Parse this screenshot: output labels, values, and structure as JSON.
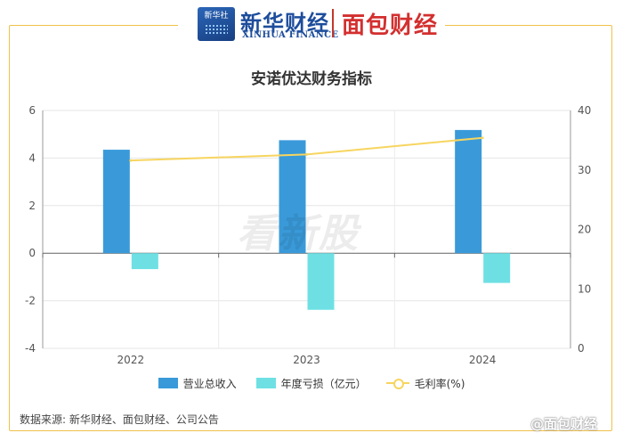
{
  "header": {
    "xinhua_badge": "新华社",
    "xinhua_cn": "新华财经",
    "xinhua_en": "XINHUA FINANCE",
    "partner_logo": "面包财经"
  },
  "watermark": "看新股",
  "source": "数据来源: 新华财经、面包财经、公司公告",
  "weibo_mark": "@面包财经",
  "colors": {
    "revenue": "#3a9ad9",
    "loss": "#6ee0e4",
    "margin": "#f7d55f",
    "frame": "#f0c24b"
  },
  "chart_data": {
    "type": "bar",
    "title": "安诺优达财务指标",
    "categories": [
      "2022",
      "2023",
      "2024"
    ],
    "series": [
      {
        "name": "营业总收入",
        "type": "bar",
        "axis": "left",
        "values": [
          4.35,
          4.75,
          5.18
        ]
      },
      {
        "name": "年度亏损（亿元）",
        "type": "bar",
        "axis": "left",
        "values": [
          -0.67,
          -2.38,
          -1.25
        ]
      },
      {
        "name": "毛利率(%)",
        "type": "line",
        "axis": "right",
        "values": [
          31.6,
          32.6,
          35.4
        ]
      }
    ],
    "y_left": {
      "range": [
        -4,
        6
      ],
      "ticks": [
        "-4",
        "-2",
        "0",
        "2",
        "4",
        "6"
      ]
    },
    "y_right": {
      "range": [
        0,
        40
      ],
      "ticks": [
        "0",
        "10",
        "20",
        "30",
        "40"
      ]
    },
    "grid": true,
    "legend": "bottom"
  }
}
